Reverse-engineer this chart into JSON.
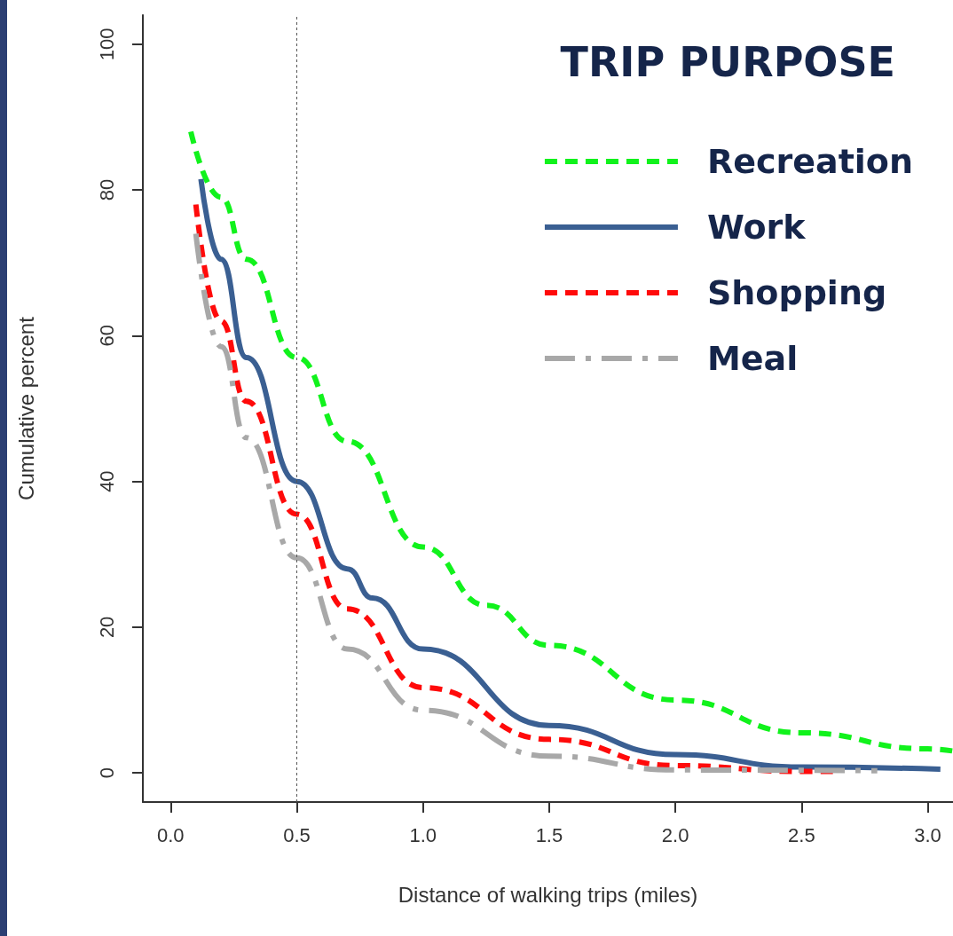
{
  "chart_data": {
    "type": "line",
    "xlabel": "Distance of walking trips (miles)",
    "ylabel": "Cumulative percent",
    "legend_title": "TRIP PURPOSE",
    "xlim": [
      -0.11,
      3.1
    ],
    "ylim": [
      -4,
      104
    ],
    "xticks": [
      {
        "value": 0,
        "label": "0.0"
      },
      0.5,
      {
        "value": 1,
        "label": "1.0"
      },
      1.5,
      {
        "value": 2,
        "label": "2.0"
      },
      2.5,
      {
        "value": 3,
        "label": "3.0"
      }
    ],
    "yticks": [
      0,
      20,
      40,
      60,
      80,
      100
    ],
    "grid": false,
    "legend": "top right",
    "marker": "none",
    "ref_lines": [
      {
        "axis": "x",
        "value": 0.5,
        "color": "#555555",
        "line_style": "dotted"
      }
    ],
    "series": [
      {
        "name": "Recreation",
        "color": "#11f21c",
        "line_style": "dashed",
        "x": [
          0.08,
          0.2,
          0.3,
          0.5,
          0.7,
          1.0,
          1.25,
          1.5,
          2.0,
          2.5,
          3.0,
          3.1
        ],
        "values": [
          88,
          79,
          70.5,
          57,
          45.5,
          31,
          23,
          17.5,
          10,
          5.5,
          3.3,
          3
        ]
      },
      {
        "name": "Work",
        "color": "#3a5f92",
        "line_style": "solid",
        "x": [
          0.12,
          0.2,
          0.3,
          0.5,
          0.7,
          0.8,
          1.0,
          1.5,
          2.0,
          2.5,
          3.05
        ],
        "values": [
          81.5,
          70.5,
          57,
          40,
          28,
          24,
          17,
          6.5,
          2.5,
          0.8,
          0.5
        ]
      },
      {
        "name": "Shopping",
        "color": "#ff0a0a",
        "line_style": "dashed",
        "x": [
          0.1,
          0.2,
          0.3,
          0.5,
          0.7,
          1.0,
          1.5,
          2.0,
          2.5,
          2.63
        ],
        "values": [
          78,
          62,
          51,
          35.5,
          22.5,
          11.7,
          4.6,
          1,
          0.2,
          0.2
        ]
      },
      {
        "name": "Meal",
        "color": "#a8a8a8",
        "line_style": "dashdot",
        "x": [
          0.1,
          0.2,
          0.3,
          0.5,
          0.7,
          1.0,
          1.5,
          2.0,
          2.8
        ],
        "values": [
          74,
          58.5,
          46,
          29.5,
          17,
          8.6,
          2.3,
          0.4,
          0.3
        ]
      }
    ]
  }
}
